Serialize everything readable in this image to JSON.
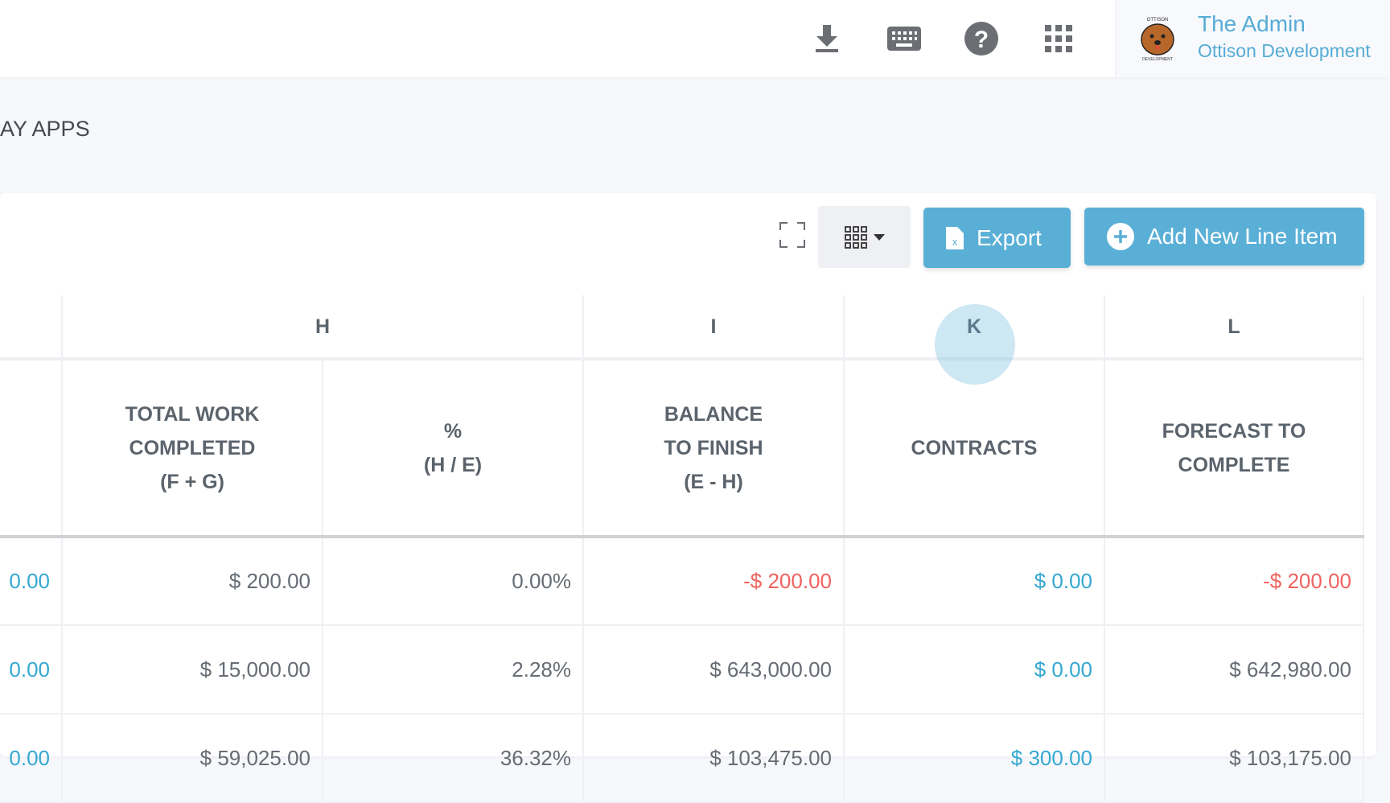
{
  "header": {
    "icons": [
      "download-icon",
      "keyboard-icon",
      "help-icon",
      "apps-grid-icon"
    ],
    "user_name": "The Admin",
    "user_org": "Ottison Development",
    "logo_text": "OTTISON DEVELOPMENT"
  },
  "breadcrumb": "AY APPS",
  "toolbar": {
    "export_label": "Export",
    "add_label": "Add New Line Item"
  },
  "colors": {
    "accent": "#5aafd6",
    "link": "#34a8d1",
    "negative": "#f0625f"
  },
  "table": {
    "letters": [
      "H",
      "I",
      "K",
      "L"
    ],
    "headers": [
      {
        "l1": "TOTAL WORK",
        "l2": "COMPLETED",
        "l3": "(F + G)"
      },
      {
        "l1": "%",
        "l2": "(H / E)"
      },
      {
        "l1": "BALANCE",
        "l2": "TO FINISH",
        "l3": "(E - H)"
      },
      {
        "l1": "CONTRACTS"
      },
      {
        "l1": "FORECAST TO",
        "l2": "COMPLETE"
      }
    ],
    "rows": [
      [
        "0.00",
        "$ 200.00",
        "0.00%",
        "-$ 200.00",
        "$ 0.00",
        "-$ 200.00"
      ],
      [
        "0.00",
        "$ 15,000.00",
        "2.28%",
        "$ 643,000.00",
        "$ 0.00",
        "$ 642,980.00"
      ],
      [
        "0.00",
        "$ 59,025.00",
        "36.32%",
        "$ 103,475.00",
        "$ 300.00",
        "$ 103,175.00"
      ]
    ]
  }
}
